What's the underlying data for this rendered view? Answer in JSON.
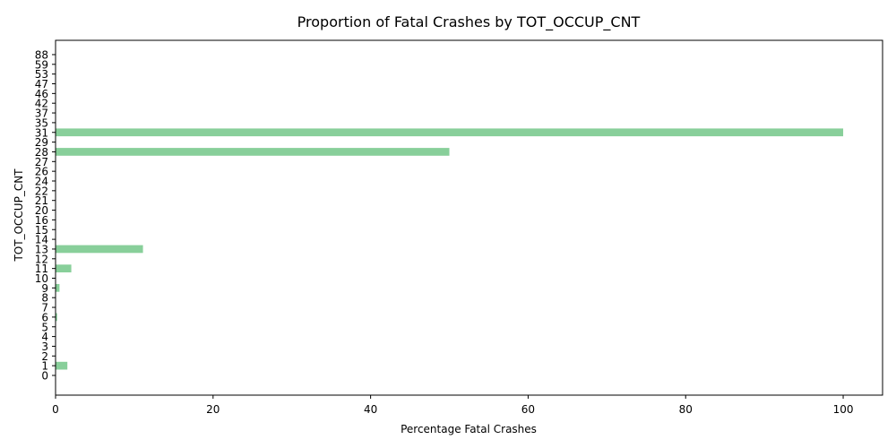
{
  "chart_data": {
    "type": "bar",
    "orientation": "horizontal",
    "title": "Proportion of Fatal Crashes by TOT_OCCUP_CNT",
    "xlabel": "Percentage Fatal Crashes",
    "ylabel": "TOT_OCCUP_CNT",
    "xlim": [
      0,
      105
    ],
    "x_ticks": [
      "0",
      "20",
      "40",
      "60",
      "80",
      "100"
    ],
    "bar_color": "#88cf9a",
    "grid": false,
    "categories": [
      "0",
      "1",
      "2",
      "3",
      "4",
      "5",
      "6",
      "7",
      "8",
      "9",
      "10",
      "11",
      "12",
      "13",
      "14",
      "15",
      "16",
      "20",
      "21",
      "22",
      "24",
      "26",
      "27",
      "28",
      "29",
      "31",
      "35",
      "37",
      "42",
      "46",
      "47",
      "53",
      "59",
      "88"
    ],
    "values": [
      0,
      1.5,
      0,
      0,
      0,
      0,
      0.2,
      0,
      0,
      0.5,
      0,
      2.0,
      0,
      11.1,
      0,
      0,
      0,
      0,
      0,
      0,
      0,
      0,
      0,
      50,
      0,
      100,
      0,
      0,
      0,
      0,
      0,
      0,
      0,
      0
    ]
  }
}
